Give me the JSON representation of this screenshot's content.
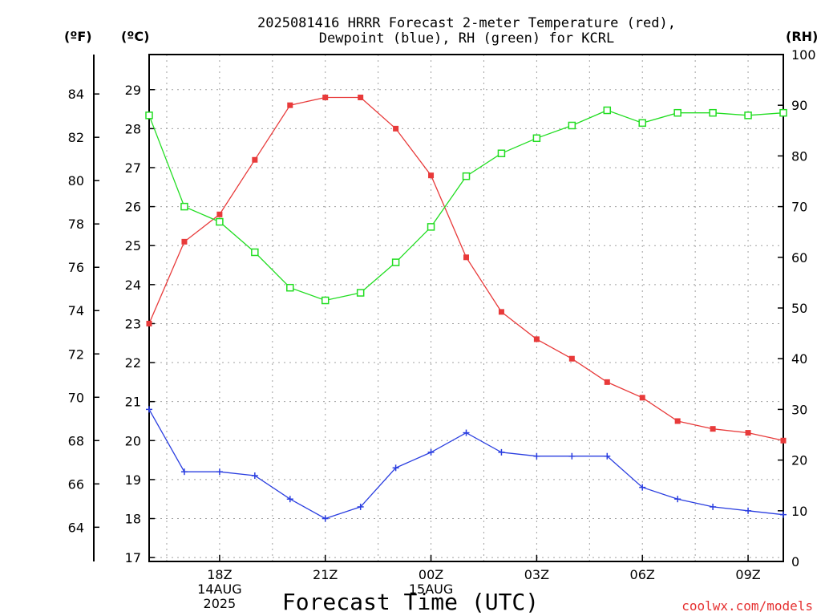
{
  "chart_data": {
    "type": "line",
    "title_lines": [
      "2025081416 HRRR Forecast 2-meter Temperature (red),",
      "Dewpoint (blue), RH (green) for KCRL"
    ],
    "xlabel": "Forecast Time (UTC)",
    "unit_labels": {
      "fahrenheit": "(ºF)",
      "celsius": "(ºC)",
      "rh": "(RH)"
    },
    "credit": "coolwx.com/models",
    "x_range_hours": [
      16,
      34
    ],
    "x_ticks": [
      {
        "hour": 18,
        "lines": [
          "18Z",
          "14AUG",
          "2025"
        ]
      },
      {
        "hour": 21,
        "lines": [
          "21Z"
        ]
      },
      {
        "hour": 24,
        "lines": [
          "00Z",
          "15AUG"
        ]
      },
      {
        "hour": 27,
        "lines": [
          "03Z"
        ]
      },
      {
        "hour": 30,
        "lines": [
          "06Z"
        ]
      },
      {
        "hour": 33,
        "lines": [
          "09Z"
        ]
      }
    ],
    "y_celsius": {
      "range": [
        16.9,
        29.9
      ],
      "ticks": [
        17,
        18,
        19,
        20,
        21,
        22,
        23,
        24,
        25,
        26,
        27,
        28,
        29
      ]
    },
    "y_fahrenheit": {
      "ticks": [
        64,
        66,
        68,
        70,
        72,
        74,
        76,
        78,
        80,
        82,
        84
      ]
    },
    "y_rh": {
      "range": [
        0,
        100
      ],
      "ticks": [
        0,
        10,
        20,
        30,
        40,
        50,
        60,
        70,
        80,
        90,
        100
      ]
    },
    "grid": true,
    "hours": [
      16,
      17,
      18,
      19,
      20,
      21,
      22,
      23,
      24,
      25,
      26,
      27,
      28,
      29,
      30,
      31,
      32,
      33,
      34
    ],
    "series": [
      {
        "name": "Temperature",
        "axis": "celsius",
        "color": "#e83a3a",
        "marker": "filled-square",
        "values": [
          23.0,
          25.1,
          25.8,
          27.2,
          28.6,
          28.8,
          28.8,
          28.0,
          26.8,
          24.7,
          23.3,
          22.6,
          22.1,
          21.5,
          21.1,
          20.5,
          20.3,
          20.2,
          20.0
        ]
      },
      {
        "name": "Dewpoint",
        "axis": "celsius",
        "color": "#2a3ee0",
        "marker": "plus",
        "values": [
          20.8,
          19.2,
          19.2,
          19.1,
          18.5,
          18.0,
          18.3,
          19.3,
          19.7,
          20.2,
          19.7,
          19.6,
          19.6,
          19.6,
          18.8,
          18.5,
          18.3,
          18.2,
          18.1
        ]
      },
      {
        "name": "RH",
        "axis": "rh",
        "color": "#22dd22",
        "marker": "open-square",
        "values": [
          88,
          70,
          67,
          61,
          54,
          51.5,
          53,
          59,
          66,
          76,
          80.5,
          83.5,
          86,
          89,
          86.5,
          88.5,
          88.5,
          88,
          88.5
        ]
      }
    ]
  }
}
